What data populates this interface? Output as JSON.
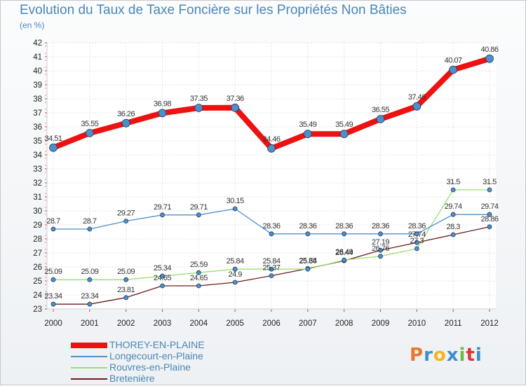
{
  "title": "Evolution du Taux de Taxe Foncière sur les Propriétés Non Bâties",
  "subtitle": "(en %)",
  "logo": {
    "text": "Proxiti",
    "letters": [
      "P",
      "r",
      "o",
      "x",
      "i",
      "t",
      "i"
    ],
    "colors": [
      "#e8762c",
      "#3a8fd0",
      "#f2b51c",
      "#3a8fd0",
      "#6cbb3c",
      "#e0363a",
      "#3a8fd0"
    ]
  },
  "legend": [
    {
      "label": "THOREY-EN-PLAINE",
      "color": "#ee1111"
    },
    {
      "label": "Longecourt-en-Plaine",
      "color": "#4f8fc9"
    },
    {
      "label": "Rouvres-en-Plaine",
      "color": "#98e070"
    },
    {
      "label": "Bretenière",
      "color": "#6e1b1b"
    }
  ],
  "chart_data": {
    "type": "line",
    "title": "Evolution du Taux de Taxe Foncière sur les Propriétés Non Bâties",
    "ylabel": "(en %)",
    "xlabel": "",
    "ylim": [
      23,
      42
    ],
    "yticks": [
      23,
      24,
      25,
      26,
      27,
      28,
      29,
      30,
      31,
      32,
      33,
      34,
      35,
      36,
      37,
      38,
      39,
      40,
      41,
      42
    ],
    "categories": [
      "2000",
      "2001",
      "2002",
      "2003",
      "2004",
      "2005",
      "2006",
      "2007",
      "2008",
      "2009",
      "2010",
      "2011",
      "2012"
    ],
    "series": [
      {
        "name": "THOREY-EN-PLAINE",
        "color": "#ee1111",
        "values": [
          34.51,
          35.55,
          36.26,
          36.98,
          37.35,
          37.36,
          34.46,
          35.49,
          35.49,
          36.55,
          37.46,
          40.07,
          40.86
        ],
        "labels": [
          "34.51",
          "35.55",
          "36.26",
          "36.98",
          "37.35",
          "37.36",
          "34.46",
          "35.49",
          "35.49",
          "36.55",
          "37.46",
          "40.07",
          "40.86"
        ]
      },
      {
        "name": "Longecourt-en-Plaine",
        "color": "#4f8fc9",
        "values": [
          28.7,
          28.7,
          29.27,
          29.71,
          29.71,
          30.15,
          28.36,
          28.36,
          28.36,
          28.36,
          28.36,
          29.74,
          29.74
        ],
        "labels": [
          "28.7",
          "28.7",
          "29.27",
          "29.71",
          "29.71",
          "30.15",
          "28.36",
          "28.36",
          "28.36",
          "28.36",
          "28.36",
          "29.74",
          "29.74"
        ]
      },
      {
        "name": "Rouvres-en-Plaine",
        "color": "#98e070",
        "values": [
          25.09,
          25.09,
          25.09,
          25.34,
          25.59,
          25.84,
          25.84,
          25.84,
          26.49,
          26.76,
          27.3,
          31.5,
          31.5
        ],
        "labels": [
          "25.09",
          "25.09",
          "25.09",
          "25.34",
          "25.59",
          "25.84",
          "25.84",
          "25.84",
          "26.49",
          "26.76",
          "27.3",
          "31.5",
          "31.5"
        ]
      },
      {
        "name": "Bretenière",
        "color": "#6e1b1b",
        "values": [
          23.34,
          23.34,
          23.81,
          24.65,
          24.65,
          24.9,
          25.37,
          25.88,
          26.44,
          27.19,
          27.74,
          28.3,
          28.86
        ],
        "labels": [
          "23.34",
          "23.34",
          "23.81",
          "24.65",
          "24.65",
          "24.9",
          "25.37",
          "25.88",
          "26.44",
          "27.19",
          "27.74",
          "28.3",
          "28.86"
        ]
      }
    ]
  }
}
